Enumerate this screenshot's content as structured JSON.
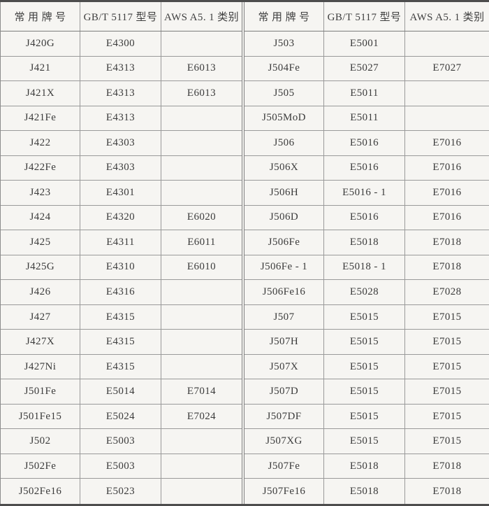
{
  "page": {
    "background_color": "#f6f5f2",
    "text_color": "#3b3b3b",
    "thin_line_color": "#9a9a9a",
    "heavy_line_color": "#4d4d4d"
  },
  "tables": [
    {
      "headers": [
        "常 用 牌 号",
        "GB/T 5117 型号",
        "AWS A5. 1 类别"
      ],
      "rows": [
        [
          "J420G",
          "E4300",
          ""
        ],
        [
          "J421",
          "E4313",
          "E6013"
        ],
        [
          "J421X",
          "E4313",
          "E6013"
        ],
        [
          "J421Fe",
          "E4313",
          ""
        ],
        [
          "J422",
          "E4303",
          ""
        ],
        [
          "J422Fe",
          "E4303",
          ""
        ],
        [
          "J423",
          "E4301",
          ""
        ],
        [
          "J424",
          "E4320",
          "E6020"
        ],
        [
          "J425",
          "E4311",
          "E6011"
        ],
        [
          "J425G",
          "E4310",
          "E6010"
        ],
        [
          "J426",
          "E4316",
          ""
        ],
        [
          "J427",
          "E4315",
          ""
        ],
        [
          "J427X",
          "E4315",
          ""
        ],
        [
          "J427Ni",
          "E4315",
          ""
        ],
        [
          "J501Fe",
          "E5014",
          "E7014"
        ],
        [
          "J501Fe15",
          "E5024",
          "E7024"
        ],
        [
          "J502",
          "E5003",
          ""
        ],
        [
          "J502Fe",
          "E5003",
          ""
        ],
        [
          "J502Fe16",
          "E5023",
          ""
        ]
      ]
    },
    {
      "headers": [
        "常 用 牌 号",
        "GB/T 5117 型号",
        "AWS A5. 1 类别"
      ],
      "rows": [
        [
          "J503",
          "E5001",
          ""
        ],
        [
          "J504Fe",
          "E5027",
          "E7027"
        ],
        [
          "J505",
          "E5011",
          ""
        ],
        [
          "J505MoD",
          "E5011",
          ""
        ],
        [
          "J506",
          "E5016",
          "E7016"
        ],
        [
          "J506X",
          "E5016",
          "E7016"
        ],
        [
          "J506H",
          "E5016 - 1",
          "E7016"
        ],
        [
          "J506D",
          "E5016",
          "E7016"
        ],
        [
          "J506Fe",
          "E5018",
          "E7018"
        ],
        [
          "J506Fe - 1",
          "E5018 - 1",
          "E7018"
        ],
        [
          "J506Fe16",
          "E5028",
          "E7028"
        ],
        [
          "J507",
          "E5015",
          "E7015"
        ],
        [
          "J507H",
          "E5015",
          "E7015"
        ],
        [
          "J507X",
          "E5015",
          "E7015"
        ],
        [
          "J507D",
          "E5015",
          "E7015"
        ],
        [
          "J507DF",
          "E5015",
          "E7015"
        ],
        [
          "J507XG",
          "E5015",
          "E7015"
        ],
        [
          "J507Fe",
          "E5018",
          "E7018"
        ],
        [
          "J507Fe16",
          "E5018",
          "E7018"
        ]
      ]
    }
  ]
}
